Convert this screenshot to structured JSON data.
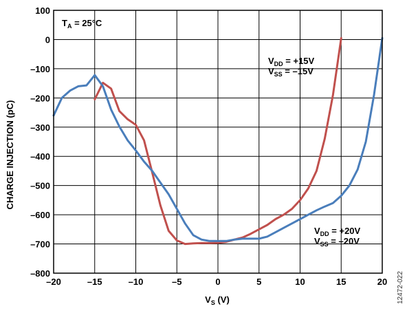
{
  "chart_data": {
    "type": "line",
    "xlabel": {
      "main": "V",
      "sub": "S",
      "rest": " (V)"
    },
    "ylabel": "CHARGE INJECTION (pC)",
    "xlim": [
      -20,
      20
    ],
    "ylim": [
      -800,
      100
    ],
    "xticks": [
      -20,
      -15,
      -10,
      -5,
      0,
      5,
      10,
      15,
      20
    ],
    "yticks": [
      100,
      0,
      -100,
      -200,
      -300,
      -400,
      -500,
      -600,
      -700,
      -800
    ],
    "xtick_labels": [
      "–20",
      "–15",
      "–10",
      "–5",
      "0",
      "5",
      "10",
      "15",
      "20"
    ],
    "ytick_labels": [
      "100",
      "0",
      "–100",
      "–200",
      "–300",
      "–400",
      "–500",
      "–600",
      "–700",
      "–800"
    ],
    "grid": true,
    "series": [
      {
        "color": "#c0504d",
        "x": [
          -15,
          -14,
          -13,
          -12,
          -11,
          -10,
          -9,
          -8,
          -7,
          -6,
          -5,
          -4,
          -3,
          -2,
          -1,
          0,
          1,
          2,
          3,
          4,
          5,
          6,
          7,
          8,
          9,
          10,
          11,
          12,
          13,
          14,
          15
        ],
        "y": [
          -205,
          -148,
          -168,
          -245,
          -273,
          -292,
          -345,
          -455,
          -568,
          -655,
          -688,
          -700,
          -698,
          -697,
          -697,
          -696,
          -693,
          -685,
          -678,
          -665,
          -650,
          -635,
          -615,
          -600,
          -580,
          -550,
          -510,
          -450,
          -340,
          -190,
          5
        ]
      },
      {
        "color": "#4a7ebb",
        "x": [
          -20,
          -19,
          -18,
          -17,
          -16,
          -15,
          -14,
          -13,
          -12,
          -11,
          -10,
          -9,
          -8,
          -7,
          -6,
          -5,
          -4,
          -3,
          -2,
          -1,
          0,
          1,
          2,
          3,
          4,
          5,
          6,
          7,
          8,
          9,
          10,
          11,
          12,
          13,
          14,
          15,
          16,
          17,
          18,
          19,
          20
        ],
        "y": [
          -260,
          -200,
          -175,
          -160,
          -157,
          -122,
          -160,
          -240,
          -298,
          -345,
          -380,
          -418,
          -450,
          -490,
          -530,
          -580,
          -630,
          -670,
          -685,
          -690,
          -690,
          -690,
          -685,
          -682,
          -682,
          -682,
          -675,
          -660,
          -645,
          -630,
          -615,
          -600,
          -585,
          -572,
          -560,
          -535,
          -500,
          -445,
          -350,
          -190,
          5
        ]
      }
    ],
    "annotations": {
      "temp": {
        "pre": "T",
        "sub": "A",
        "post": " = 25°C"
      },
      "series1_label": [
        {
          "pre": "V",
          "sub": "DD",
          "post": " = +15V"
        },
        {
          "pre": "V",
          "sub": "SS",
          "post": " = –15V"
        }
      ],
      "series2_label": [
        {
          "pre": "V",
          "sub": "DD",
          "post": " = +20V"
        },
        {
          "pre": "V",
          "sub": "SS",
          "post": " = –20V"
        }
      ]
    },
    "figure_id": "12472-022"
  }
}
